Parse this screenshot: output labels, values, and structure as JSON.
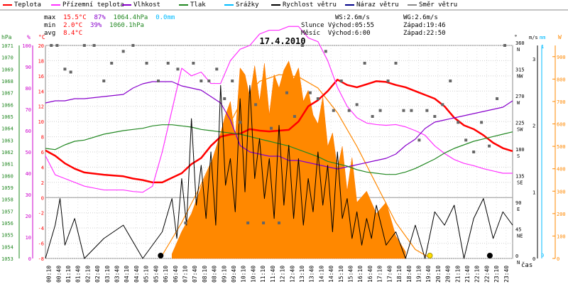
{
  "legend": [
    {
      "label": "Teplota",
      "color": "#ff0000"
    },
    {
      "label": "Přízemní teplota",
      "color": "#ff33ff"
    },
    {
      "label": "Vlhkost",
      "color": "#8800cc"
    },
    {
      "label": "Tlak",
      "color": "#228822"
    },
    {
      "label": "Srážky",
      "color": "#00bbff"
    },
    {
      "label": "Rychlost větru",
      "color": "#000000"
    },
    {
      "label": "Náraz větru",
      "color": "#000088"
    },
    {
      "label": "Směr větru",
      "color": "#888888"
    }
  ],
  "stats": {
    "max_label": "max",
    "max_temp": "15.5°C",
    "max_hum": "87%",
    "max_press": "1064.4hPa",
    "max_rain": "0.0mm",
    "min_label": "min",
    "min_temp": "2.0°C",
    "min_hum": "39%",
    "min_press": "1060.1hPa",
    "avg_label": "avg",
    "avg_temp": "8.4°C"
  },
  "wind_info": {
    "ws": "WS:2.6m/s",
    "wg": "WG:2.6m/s",
    "sun": "Slunce Východ:05:55",
    "sun_set": "Západ:19:46",
    "moon": "Měsíc  Východ:6:00",
    "moon_set": "Západ:22:50"
  },
  "chart_data": {
    "type": "line",
    "title": "17.4.2010",
    "xlabel": "čas",
    "x_ticks": [
      "00:10",
      "00:40",
      "01:10",
      "01:40",
      "02:10",
      "02:40",
      "03:10",
      "03:40",
      "04:10",
      "04:40",
      "05:10",
      "05:40",
      "06:10",
      "06:40",
      "07:10",
      "07:40",
      "08:10",
      "08:40",
      "09:10",
      "09:40",
      "10:10",
      "10:40",
      "11:10",
      "11:40",
      "12:10",
      "12:40",
      "13:10",
      "13:40",
      "14:10",
      "14:40",
      "15:10",
      "15:40",
      "16:10",
      "16:40",
      "17:10",
      "17:40",
      "18:10",
      "18:40",
      "19:10",
      "19:40",
      "20:10",
      "20:40",
      "21:10",
      "21:40",
      "22:10",
      "22:40",
      "23:10",
      "23:40"
    ],
    "axes": {
      "pressure": {
        "unit": "hPa",
        "ticks": [
          1053,
          1054,
          1055,
          1056,
          1057,
          1058,
          1059,
          1060,
          1061,
          1062,
          1063,
          1064,
          1065,
          1066,
          1067,
          1068,
          1069,
          1070,
          1071
        ],
        "color": "#228822"
      },
      "humidity": {
        "unit": "%",
        "ticks": [
          0,
          10,
          20,
          30,
          40,
          50,
          60,
          70,
          80,
          90,
          100
        ],
        "color": "#cc00cc"
      },
      "temperature": {
        "unit": "°C",
        "ticks": [
          -8,
          -6,
          -4,
          -2,
          0,
          2,
          4,
          6,
          8,
          10,
          12,
          14,
          16,
          18,
          20
        ],
        "color": "#ff0000"
      },
      "direction": {
        "unit": "°",
        "ticks": [
          "0 N",
          "45 NE",
          "90 E",
          "135 SE",
          "180 S",
          "225 SW",
          "270 W",
          "315 NW",
          "360 N"
        ],
        "color": "#000000"
      },
      "wind": {
        "unit": "m/s",
        "ticks": [
          0,
          1,
          2,
          3
        ],
        "color": "#000000"
      },
      "rain": {
        "unit": "mm",
        "ticks": [
          0,
          1
        ],
        "color": "#00bbff"
      },
      "solar": {
        "unit": "W",
        "ticks": [
          0,
          100,
          200,
          300,
          400,
          500,
          600,
          700,
          800,
          900
        ],
        "color": "#ff8800"
      }
    },
    "series": [
      {
        "name": "Teplota",
        "axis": "temperature",
        "color": "#ff0000",
        "x": [
          0,
          0.5,
          1,
          1.5,
          2,
          3,
          4,
          4.5,
          5,
          5.5,
          6,
          6.5,
          7,
          7.5,
          8,
          8.5,
          9,
          9.5,
          10,
          10.5,
          11,
          11.5,
          12,
          12.5,
          13,
          13.5,
          14,
          14.5,
          15,
          15.5,
          16,
          16.5,
          17,
          17.5,
          18,
          18.5,
          19,
          19.5,
          20,
          20.5,
          21,
          21.5,
          22,
          22.5,
          23,
          23.5,
          24
        ],
        "y": [
          6.2,
          5.5,
          4.5,
          3.8,
          3.3,
          3.0,
          2.8,
          2.5,
          2.3,
          2.0,
          2.0,
          2.6,
          3.2,
          4.4,
          5.2,
          6.8,
          8.0,
          8.3,
          8.4,
          9.0,
          8.8,
          8.7,
          8.8,
          8.9,
          10.0,
          12.0,
          12.8,
          14.0,
          15.5,
          14.8,
          14.5,
          14.9,
          15.3,
          15.2,
          14.8,
          14.5,
          14.0,
          13.5,
          13.0,
          12.0,
          10.5,
          9.5,
          9.0,
          8.2,
          7.2,
          6.5,
          6.1
        ]
      },
      {
        "name": "Přízemní teplota",
        "axis": "temperature",
        "color": "#ff33ff",
        "x": [
          0,
          0.5,
          1,
          1.5,
          2,
          3,
          4,
          4.5,
          5,
          5.5,
          6,
          6.5,
          7,
          7.5,
          8,
          8.5,
          9,
          9.5,
          10,
          10.5,
          11,
          11.5,
          12,
          12.5,
          13,
          13.5,
          14,
          14.5,
          15,
          15.5,
          16,
          16.5,
          17,
          17.5,
          18,
          18.5,
          19,
          19.5,
          20,
          20.5,
          21,
          21.5,
          22,
          22.5,
          23,
          23.5,
          24
        ],
        "y": [
          5.5,
          3.0,
          2.5,
          2.0,
          1.5,
          1.0,
          1.0,
          0.8,
          0.7,
          1.5,
          6.0,
          11.5,
          17.0,
          16.0,
          16.5,
          15.0,
          15.0,
          18.0,
          19.5,
          20.0,
          21.5,
          22.0,
          22.0,
          22.5,
          22.5,
          21.0,
          20.5,
          18.0,
          14.5,
          12.0,
          10.5,
          9.8,
          9.6,
          9.5,
          9.6,
          9.3,
          8.8,
          8.2,
          6.8,
          5.8,
          5.0,
          4.5,
          4.2,
          3.8,
          3.5,
          3.2,
          3.2
        ]
      },
      {
        "name": "Vlhkost",
        "axis": "humidity",
        "color": "#8800cc",
        "x": [
          0,
          0.5,
          1,
          1.5,
          2,
          3,
          4,
          4.5,
          5,
          5.5,
          6,
          6.5,
          7,
          7.5,
          8,
          8.5,
          9,
          9.5,
          10,
          10.5,
          11,
          11.5,
          12,
          12.5,
          13,
          13.5,
          14,
          14.5,
          15,
          15.5,
          16,
          16.5,
          17,
          17.5,
          18,
          18.5,
          19,
          19.5,
          20,
          20.5,
          21,
          21.5,
          22,
          22.5,
          23,
          23.5,
          24
        ],
        "y": [
          73,
          74,
          74,
          75,
          75,
          76,
          77,
          80,
          82,
          83,
          83,
          83,
          81,
          80,
          79,
          76,
          73,
          65,
          53,
          50,
          49,
          48,
          48,
          46,
          46,
          45,
          44,
          43,
          42,
          43,
          44,
          45,
          46,
          47,
          49,
          53,
          56,
          61,
          64,
          65,
          66,
          67,
          68,
          69,
          70,
          71,
          74
        ]
      },
      {
        "name": "Tlak",
        "axis": "pressure",
        "color": "#228822",
        "x": [
          0,
          0.5,
          1,
          1.5,
          2,
          3,
          4,
          4.5,
          5,
          5.5,
          6,
          6.5,
          7,
          7.5,
          8,
          8.5,
          9,
          9.5,
          10,
          10.5,
          11,
          11.5,
          12,
          12.5,
          13,
          13.5,
          14,
          14.5,
          15,
          15.5,
          16,
          16.5,
          17,
          17.5,
          18,
          18.5,
          19,
          19.5,
          20,
          20.5,
          21,
          21.5,
          22,
          22.5,
          23,
          23.5,
          24
        ],
        "y": [
          1062.3,
          1062.2,
          1062.6,
          1062.9,
          1063.0,
          1063.5,
          1063.8,
          1063.9,
          1064.0,
          1064.2,
          1064.3,
          1064.3,
          1064.2,
          1064.1,
          1063.9,
          1063.8,
          1063.7,
          1063.6,
          1063.5,
          1063.3,
          1063.1,
          1062.9,
          1062.7,
          1062.5,
          1062.2,
          1061.9,
          1061.6,
          1061.2,
          1061.0,
          1060.8,
          1060.5,
          1060.3,
          1060.2,
          1060.1,
          1060.1,
          1060.3,
          1060.6,
          1061.0,
          1061.4,
          1061.9,
          1062.3,
          1062.6,
          1062.9,
          1063.1,
          1063.3,
          1063.5,
          1063.7
        ]
      },
      {
        "name": "Rychlost větru",
        "axis": "wind",
        "color": "#000000",
        "x": [
          0,
          0.5,
          0.75,
          1,
          1.5,
          2,
          3,
          4,
          5,
          6,
          6.5,
          6.75,
          7,
          7.25,
          7.5,
          7.75,
          8,
          8.25,
          8.5,
          8.75,
          9,
          9.25,
          9.5,
          9.75,
          10,
          10.25,
          10.5,
          10.75,
          11,
          11.25,
          11.5,
          11.75,
          12,
          12.25,
          12.5,
          12.75,
          13,
          13.25,
          13.5,
          13.75,
          14,
          14.25,
          14.5,
          14.75,
          15,
          15.25,
          15.5,
          15.75,
          16,
          16.25,
          16.5,
          16.75,
          17,
          17.5,
          18,
          18.5,
          19,
          19.5,
          20,
          20.5,
          21,
          21.5,
          22,
          22.5,
          23,
          23.5,
          24
        ],
        "y": [
          0,
          0.5,
          0.9,
          0.2,
          0.6,
          0,
          0.3,
          0.5,
          0,
          0.4,
          0.9,
          0.3,
          1.2,
          0.5,
          2.1,
          0.8,
          1.4,
          0.6,
          1.6,
          0.5,
          2.6,
          1.1,
          1.5,
          0.7,
          2.4,
          1.0,
          2.6,
          1.2,
          1.8,
          0.9,
          1.5,
          0.6,
          2.0,
          0.8,
          1.7,
          0.6,
          1.5,
          0.5,
          1.2,
          0.7,
          1.6,
          0.8,
          1.4,
          0.4,
          1.6,
          0.6,
          0.9,
          0.3,
          0.7,
          0.2,
          0.6,
          0.3,
          0.8,
          0.2,
          0.4,
          0,
          0.5,
          0,
          0.7,
          0.5,
          0.8,
          0,
          0.6,
          0.9,
          0.3,
          0.7,
          0.5
        ]
      },
      {
        "name": "Směr větru",
        "axis": "direction",
        "color": "#666666",
        "x": [
          0.3,
          0.6,
          1,
          1.3,
          2,
          2.5,
          3,
          3.4,
          4,
          4.5,
          5.2,
          5.8,
          6.3,
          6.8,
          7.2,
          7.6,
          8,
          8.4,
          8.8,
          9.2,
          9.6,
          10,
          10.4,
          10.8,
          11.2,
          11.6,
          12,
          12.4,
          12.8,
          13.2,
          13.6,
          14,
          14.4,
          14.8,
          15.2,
          15.6,
          16,
          16.4,
          16.8,
          17.2,
          17.6,
          18,
          18.4,
          18.8,
          19.2,
          19.6,
          20,
          20.4,
          20.8,
          21.2,
          21.6,
          22,
          22.4,
          22.8,
          23.2,
          23.6
        ],
        "y": [
          360,
          360,
          320,
          315,
          360,
          360,
          300,
          330,
          350,
          360,
          330,
          300,
          330,
          320,
          60,
          330,
          300,
          300,
          320,
          270,
          300,
          230,
          60,
          260,
          60,
          220,
          60,
          280,
          240,
          360,
          280,
          270,
          350,
          250,
          300,
          250,
          260,
          330,
          240,
          250,
          300,
          330,
          250,
          250,
          200,
          250,
          240,
          260,
          300,
          230,
          200,
          180,
          230,
          190,
          270,
          360
        ]
      }
    ],
    "solar": {
      "name": "solar",
      "axis": "solar",
      "color": "#ff8800",
      "x": [
        6.5,
        7,
        7.5,
        8,
        8.5,
        9,
        9.25,
        9.5,
        9.75,
        10,
        10.25,
        10.5,
        10.75,
        11,
        11.25,
        11.5,
        11.75,
        12,
        12.25,
        12.5,
        12.75,
        13,
        13.25,
        13.5,
        13.75,
        14,
        14.25,
        14.5,
        14.75,
        15,
        15.25,
        15.5,
        15.75,
        16,
        16.5,
        17,
        17.5,
        18,
        18.5
      ],
      "y": [
        20,
        120,
        200,
        320,
        420,
        560,
        640,
        700,
        540,
        850,
        820,
        720,
        860,
        700,
        870,
        640,
        820,
        760,
        840,
        880,
        800,
        850,
        700,
        750,
        640,
        600,
        720,
        500,
        560,
        400,
        500,
        300,
        450,
        250,
        300,
        200,
        250,
        100,
        30
      ],
      "envelope_x": [
        5.9,
        7,
        8,
        9,
        10,
        11,
        12,
        13,
        14,
        15,
        16,
        17,
        18,
        19,
        19.8
      ],
      "envelope_y": [
        0,
        160,
        330,
        520,
        690,
        790,
        820,
        810,
        760,
        650,
        500,
        330,
        160,
        40,
        0
      ]
    },
    "markers": [
      {
        "label": "sunrise",
        "x": 5.92,
        "color": "#000000"
      },
      {
        "label": "moonset",
        "x": 22.83,
        "color": "#000000"
      },
      {
        "label": "moon",
        "x": 19.75,
        "color": "#ffdd00"
      }
    ]
  }
}
